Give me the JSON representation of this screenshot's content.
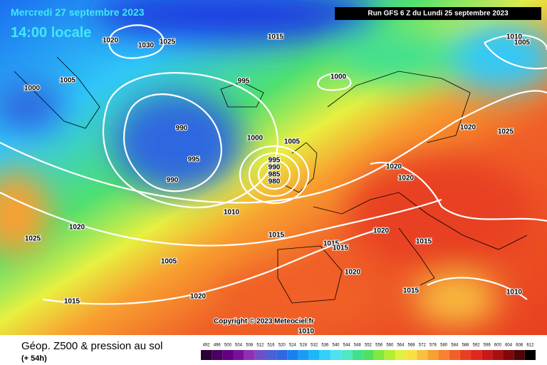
{
  "header": {
    "date": "Mercredi 27 septembre 2023",
    "time": "14:00 locale",
    "run": "Run GFS 6 Z du Lundi 25 septembre 2023"
  },
  "isobar_labels": [
    1020,
    1030,
    1025,
    1015,
    1010,
    1005,
    1000,
    1005,
    995,
    1000,
    990,
    995,
    990,
    1000,
    1005,
    995,
    990,
    985,
    980,
    1020,
    1020,
    1020,
    1025,
    1010,
    1020,
    1025,
    1015,
    1015,
    1015,
    1020,
    1015,
    1005,
    1020,
    1015,
    1010,
    1020,
    1015,
    1010
  ],
  "copyright": "Copyright © 2023 Meteociel.fr",
  "footer": {
    "title": "Géop. Z500 & pression au sol",
    "subtitle": "(+ 54h)"
  },
  "legend": {
    "values": [
      492,
      496,
      500,
      504,
      508,
      512,
      516,
      520,
      524,
      528,
      532,
      536,
      540,
      544,
      548,
      552,
      556,
      560,
      564,
      568,
      572,
      576,
      580,
      584,
      588,
      592,
      596,
      600,
      604,
      608,
      612
    ],
    "colors": [
      "#2b0033",
      "#4a0060",
      "#62007f",
      "#7a1099",
      "#8f30b0",
      "#7050c8",
      "#4d60d8",
      "#2f68e0",
      "#1a80f0",
      "#1a9cf5",
      "#1ab8f8",
      "#30d0f8",
      "#50e0f0",
      "#50e8c0",
      "#40e090",
      "#50e060",
      "#80e840",
      "#b0f030",
      "#e0f040",
      "#f8e040",
      "#f8c040",
      "#f8a030",
      "#f88030",
      "#f06028",
      "#e84020",
      "#e02820",
      "#c81818",
      "#a81010",
      "#800808",
      "#500404",
      "#000000"
    ]
  }
}
